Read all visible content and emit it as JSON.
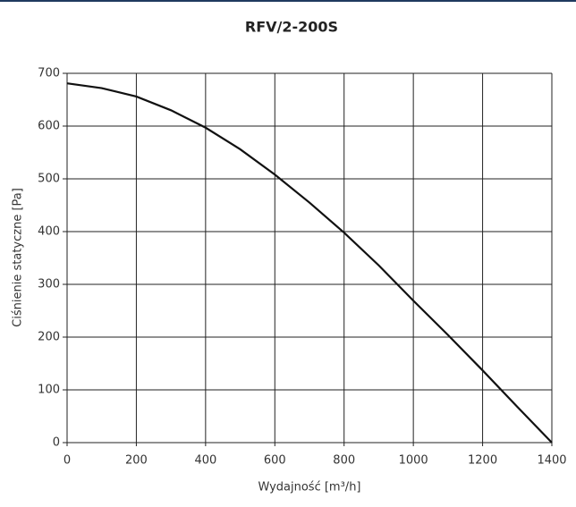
{
  "chart_data": {
    "type": "line",
    "title": "RFV/2-200S",
    "x_label": "Wydajność [m³/h]",
    "y_label": "Ciśnienie statyczne [Pa]",
    "x": [
      0,
      100,
      200,
      300,
      400,
      500,
      600,
      700,
      800,
      900,
      1000,
      1100,
      1200,
      1300,
      1400
    ],
    "series": [
      {
        "name": "RFV/2-200S",
        "color": "#111111",
        "values": [
          681,
          672,
          656,
          630,
          597,
          556,
          508,
          455,
          398,
          336,
          269,
          204,
          137,
          68,
          0
        ]
      }
    ],
    "xlim": [
      0,
      1400
    ],
    "xticks": [
      0,
      200,
      400,
      600,
      800,
      1000,
      1200,
      1400
    ],
    "ylim": [
      0,
      700
    ],
    "yticks": [
      700,
      600,
      500,
      400,
      300,
      200,
      100,
      0
    ],
    "grid": true
  }
}
